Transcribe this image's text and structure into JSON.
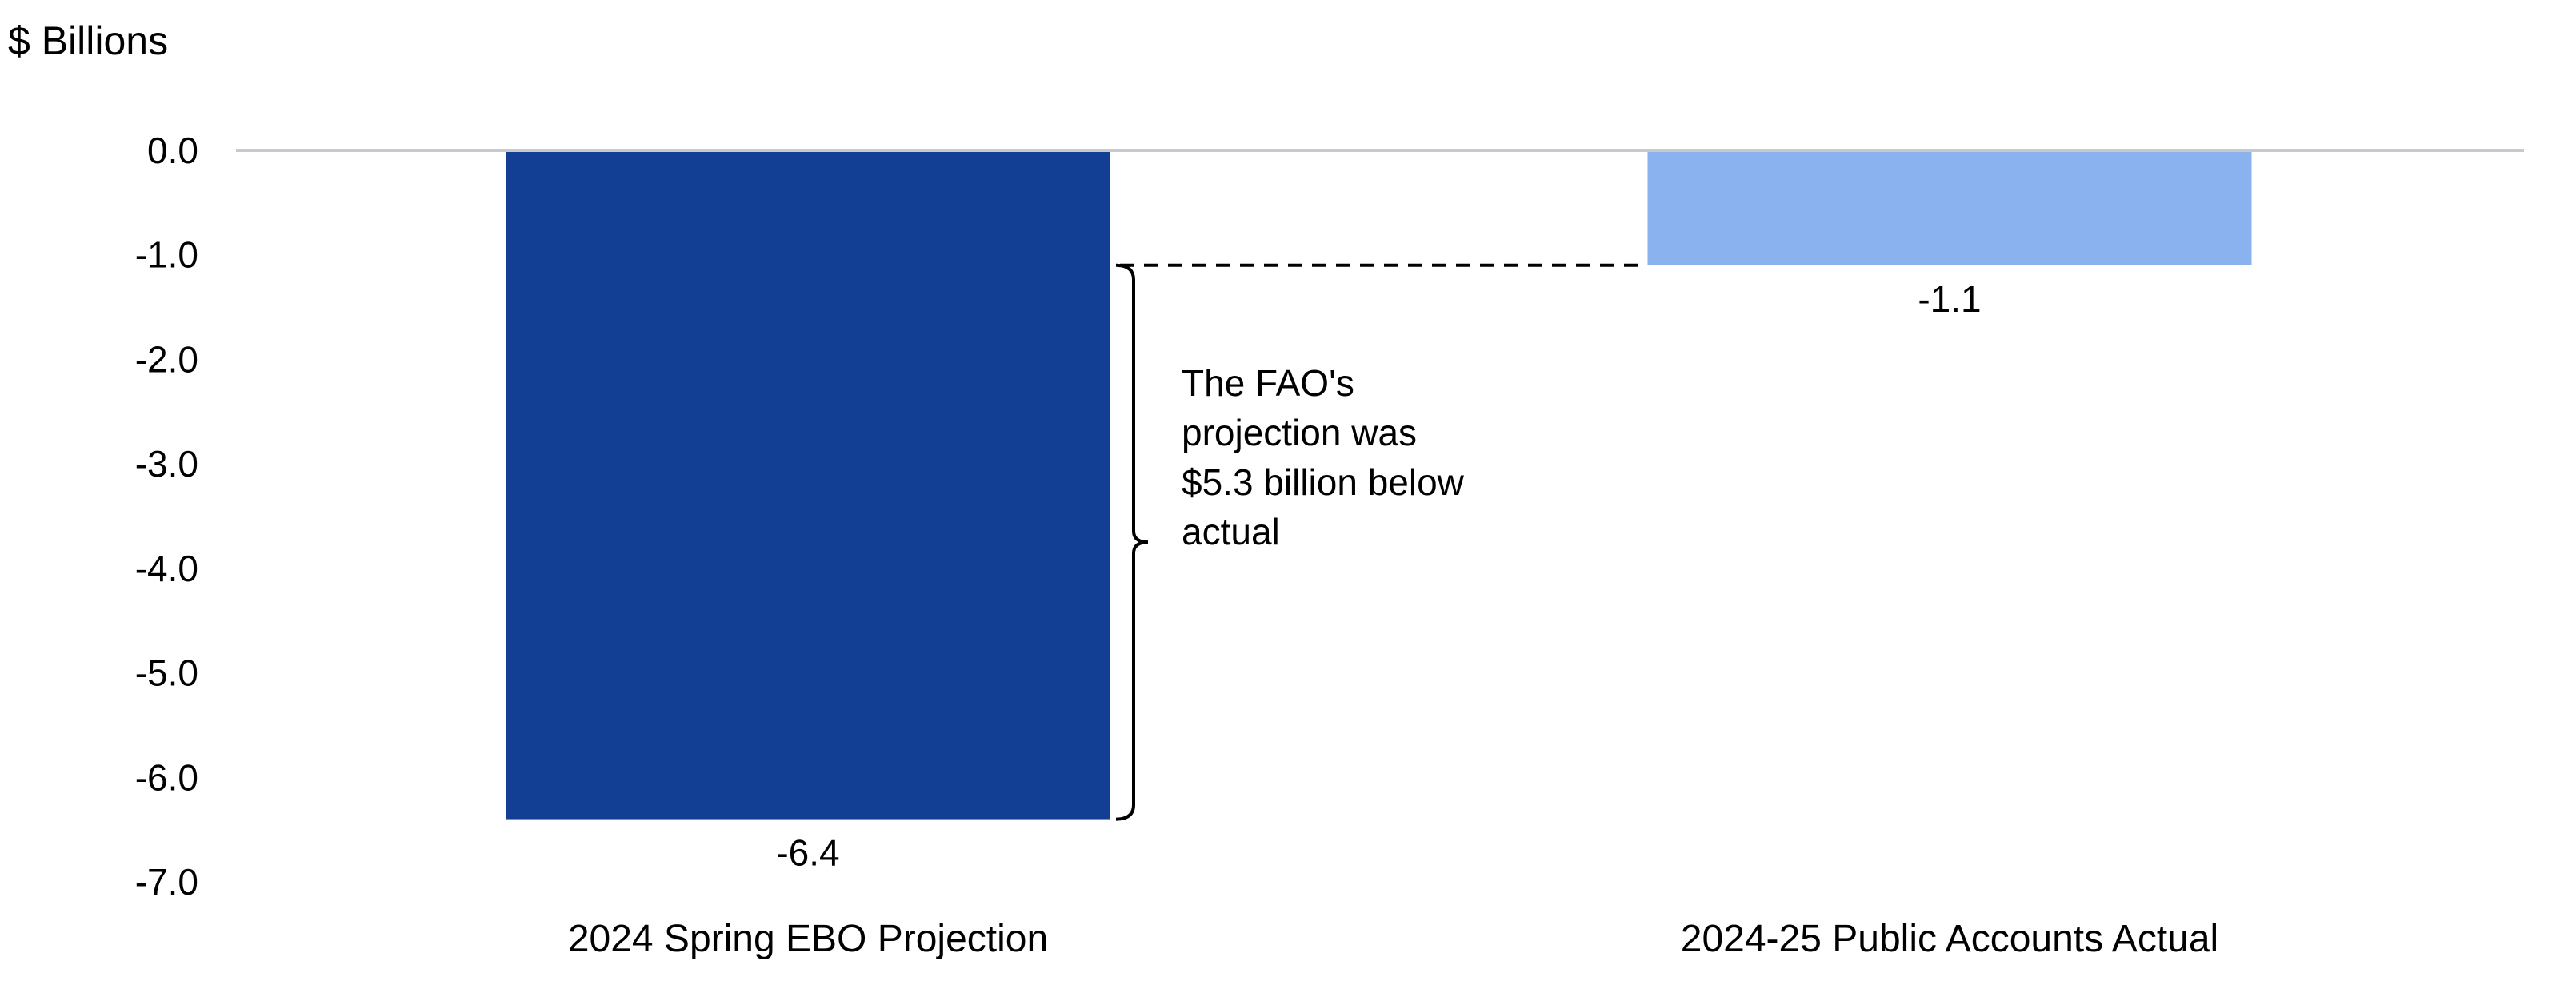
{
  "chart_data": {
    "type": "bar",
    "unit_label": "$ Billions",
    "categories": [
      "2024 Spring EBO Projection",
      "2024-25 Public Accounts Actual"
    ],
    "values": [
      -6.4,
      -1.1
    ],
    "value_labels": [
      "-6.4",
      "-1.1"
    ],
    "colors": [
      "#123f93",
      "#8ab2ee"
    ],
    "ylim": [
      -7.0,
      0.0
    ],
    "yticks": [
      0.0,
      -1.0,
      -2.0,
      -3.0,
      -4.0,
      -5.0,
      -6.0,
      -7.0
    ],
    "ytick_labels": [
      "0.0",
      "-1.0",
      "-2.0",
      "-3.0",
      "-4.0",
      "-5.0",
      "-6.0",
      "-7.0"
    ],
    "grid": false,
    "zero_line_color": "#c8c8d0",
    "annotation": {
      "lines": [
        "The FAO's",
        "projection was",
        "$5.3 billion below",
        "actual"
      ],
      "from_value": -1.1,
      "to_value": -6.4
    }
  }
}
